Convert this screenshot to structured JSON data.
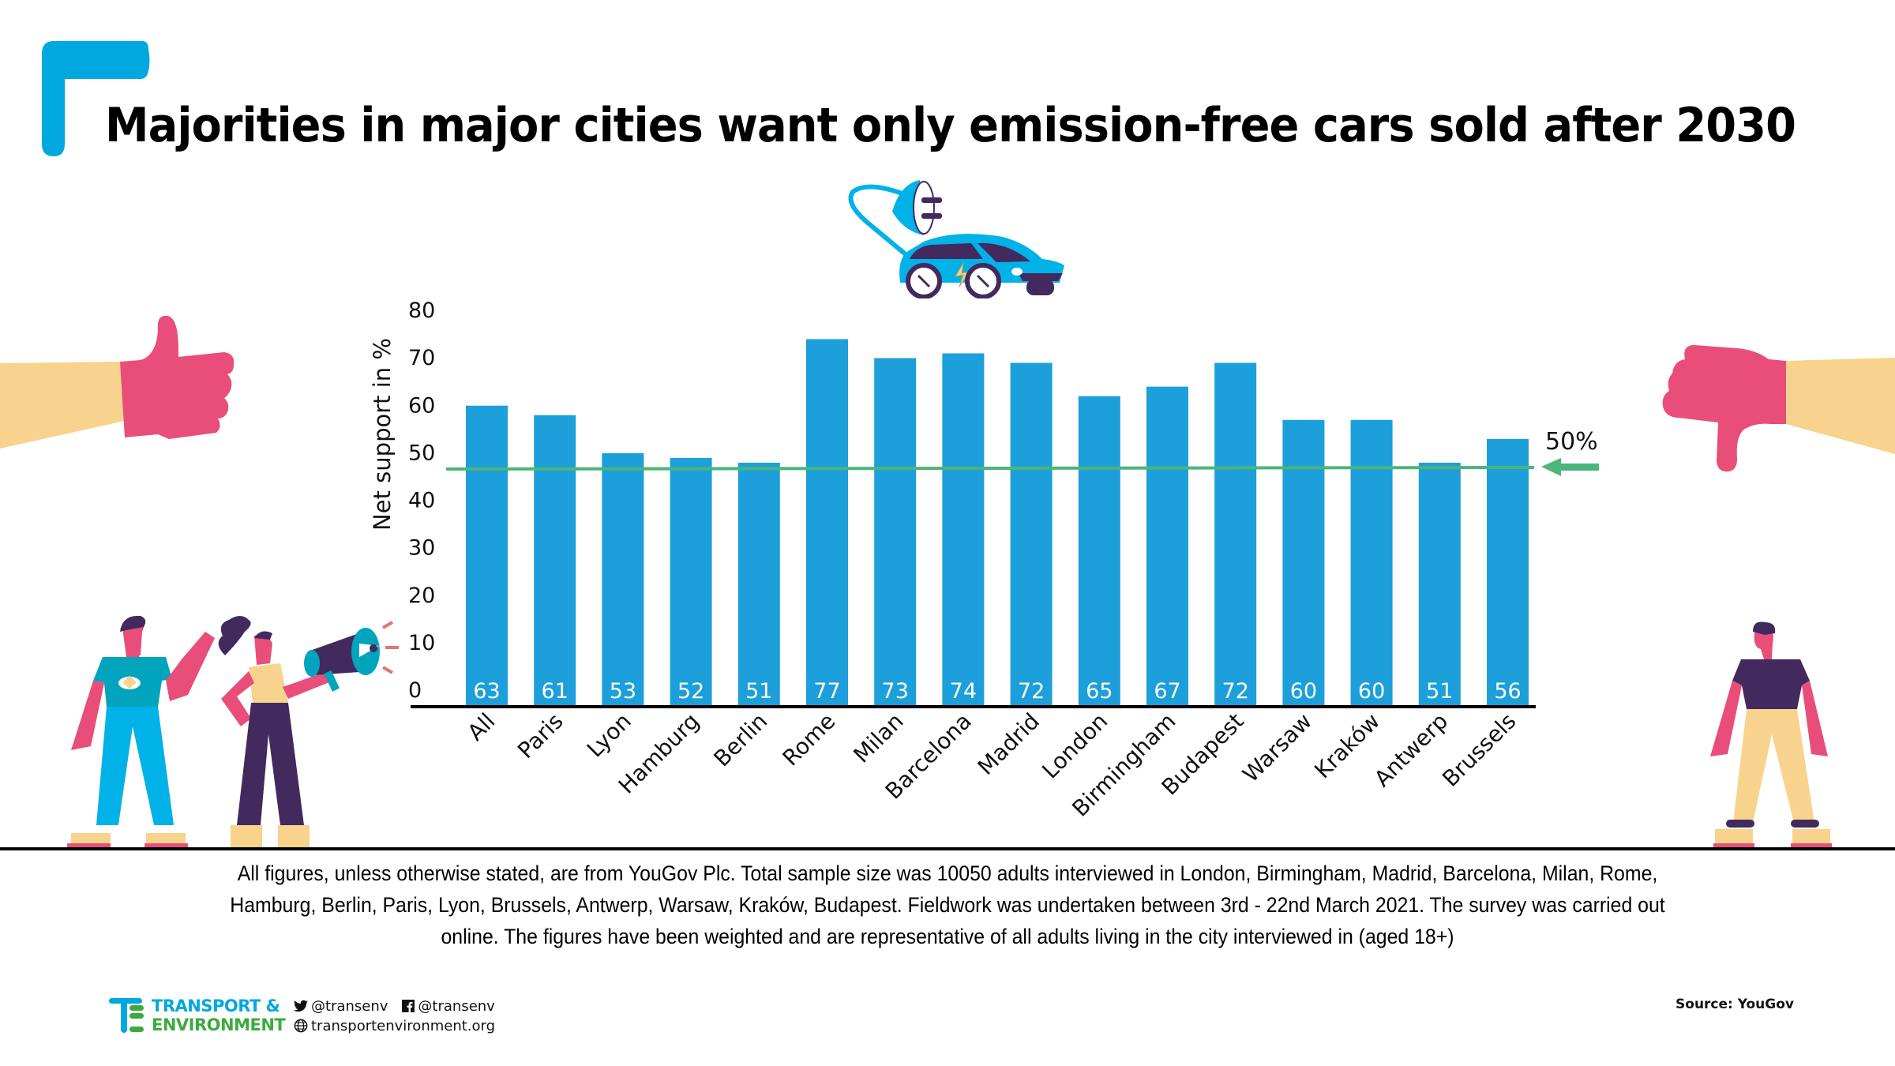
{
  "title": "Majorities in major cities want only emission-free cars sold after 2030",
  "colors": {
    "bar": "#1c9fda",
    "reference_line": "#4bb57a",
    "brand_blue": "#00a8df",
    "brand_green": "#3cab3f",
    "accent_pink": "#e84e79",
    "skin_yellow": "#f7d38d",
    "purple": "#42295e"
  },
  "chart_data": {
    "type": "bar",
    "title": "Majorities in major cities want only emission-free cars sold after 2030",
    "xlabel": "",
    "ylabel": "Net support in %",
    "categories": [
      "All",
      "Paris",
      "Lyon",
      "Hamburg",
      "Berlin",
      "Rome",
      "Milan",
      "Barcelona",
      "Madrid",
      "London",
      "Birmingham",
      "Budapest",
      "Warsaw",
      "Kraków",
      "Antwerp",
      "Brussels"
    ],
    "values": [
      63,
      61,
      53,
      52,
      51,
      77,
      73,
      74,
      72,
      65,
      67,
      72,
      60,
      60,
      51,
      56
    ],
    "yticks": [
      "0",
      "10",
      "20",
      "30",
      "40",
      "50",
      "60",
      "70",
      "80"
    ],
    "ylim": [
      0,
      80
    ],
    "grid": false,
    "reference_line": {
      "value": 50,
      "label": "50%"
    },
    "data_labels": "inside-bottom"
  },
  "footnote": [
    "All figures, unless otherwise stated, are from YouGov Plc. Total sample size was 10050 adults interviewed in London, Birmingham, Madrid, Barcelona, Milan, Rome,",
    "Hamburg, Berlin, Paris, Lyon, Brussels, Antwerp, Warsaw, Kraków, Budapest. Fieldwork was undertaken between 3rd - 22nd March 2021. The survey was carried out",
    "online. The figures have been weighted and are representative of all adults living in the city interviewed in (aged 18+)"
  ],
  "footer": {
    "brand_line1": "TRANSPORT &",
    "brand_line2": "ENVIRONMENT",
    "twitter": "@transenv",
    "facebook": "@transenv",
    "website": "transportenvironment.org",
    "source": "Source: YouGov"
  },
  "icons": {
    "corner_mark": "brand-corner-icon",
    "car": "electric-car-icon",
    "thumbs_up": "thumbs-up-icon",
    "thumbs_down": "thumbs-down-icon",
    "people_left": "people-megaphone-illustration",
    "person_right": "standing-person-illustration",
    "twitter": "twitter-icon",
    "facebook": "facebook-icon",
    "globe": "globe-icon"
  }
}
